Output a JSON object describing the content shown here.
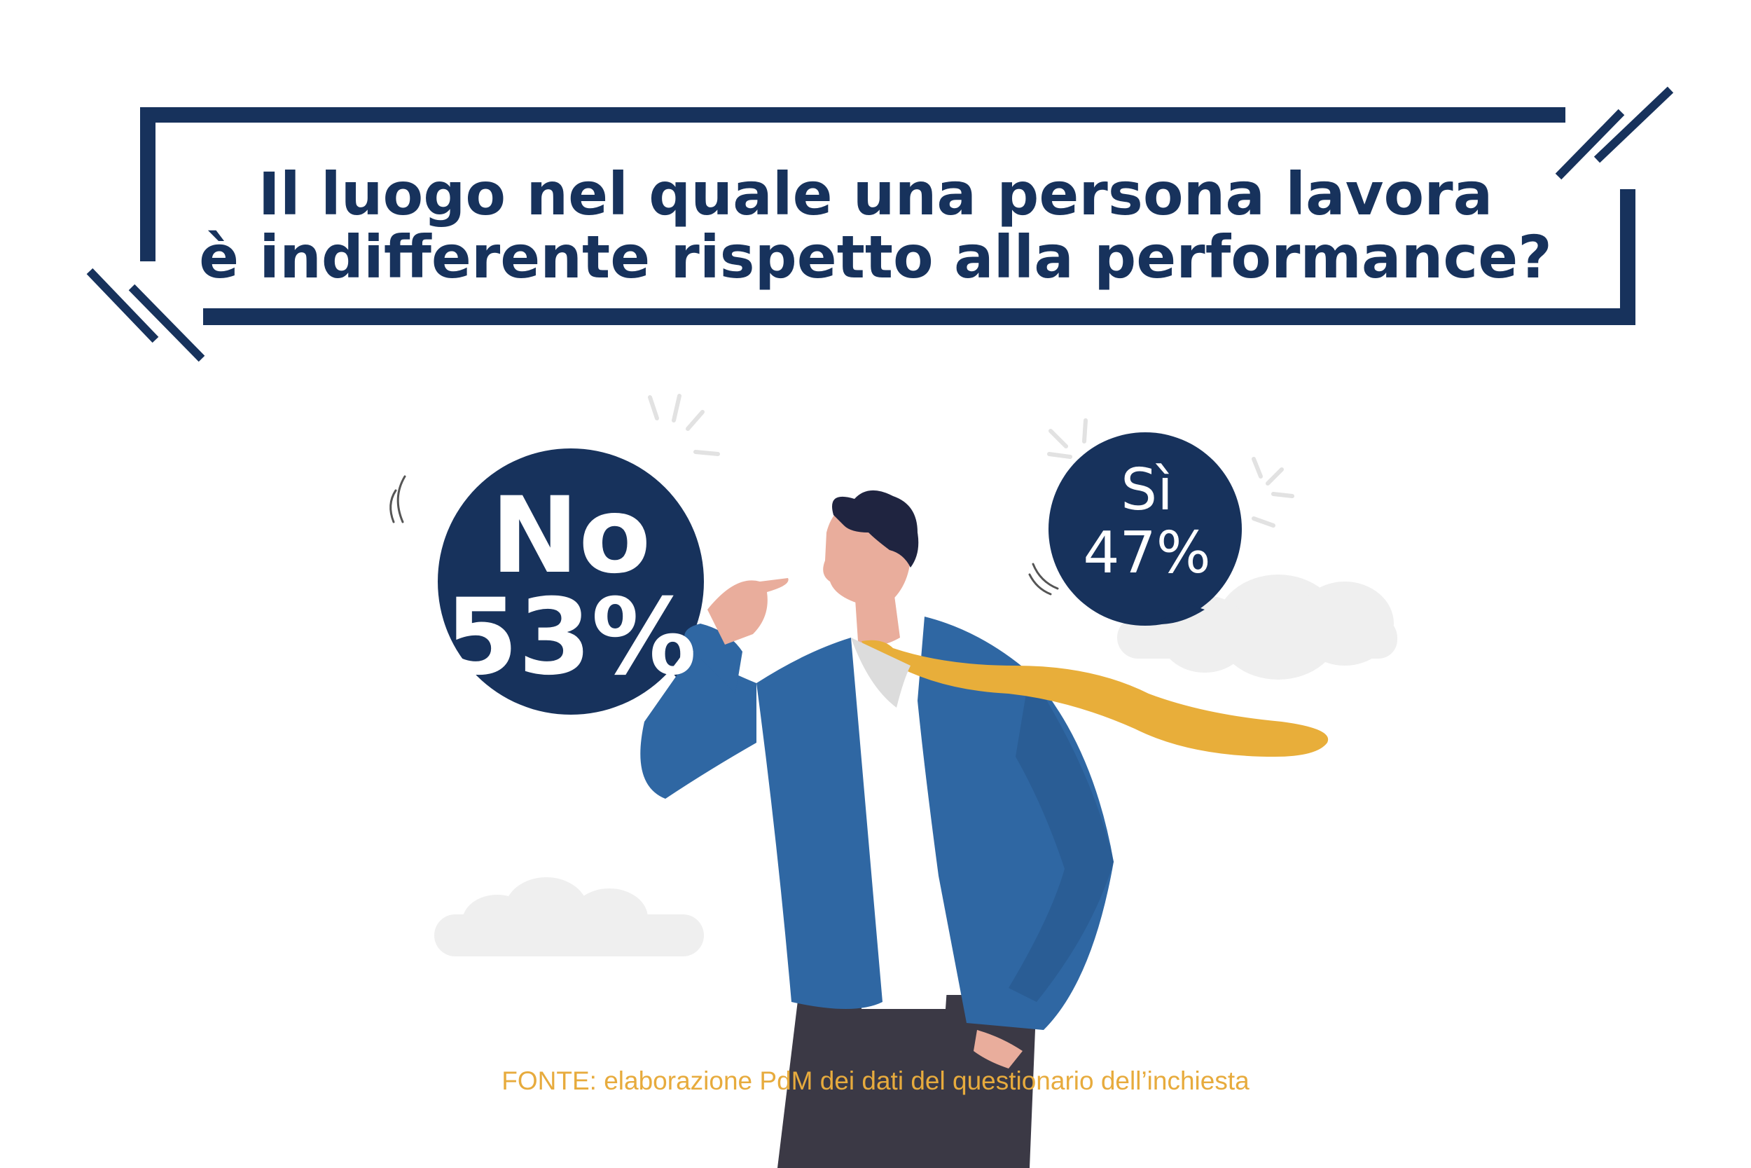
{
  "title": {
    "line1": "Il luogo nel quale una persona lavora",
    "line2": "è indifferente rispetto alla performance?"
  },
  "answers": [
    {
      "label": "No",
      "value": "53%"
    },
    {
      "label": "Sì",
      "value": "47%"
    }
  ],
  "source": "FONTE: elaborazione PdM dei dati del questionario dell’inchiesta",
  "colors": {
    "navy": "#17325c",
    "jacket": "#2f67a3",
    "tie": "#e8ae3a",
    "source_text": "#e7ab3d",
    "cloud": "#efefef"
  }
}
